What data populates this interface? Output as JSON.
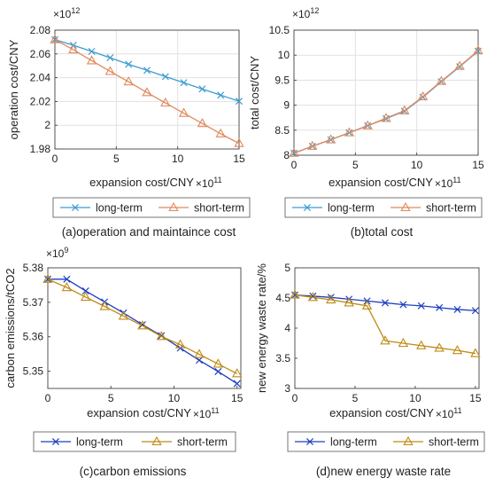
{
  "chart_data": [
    {
      "type": "line",
      "caption": "(a)operation and maintaince cost",
      "xlabel": "expansion cost/CNY",
      "x_exponent": "×10",
      "x_exponent_power": "11",
      "ylabel": "operation cost/CNY",
      "y_exponent": "×10",
      "y_exponent_power": "12",
      "xlim": [
        0,
        15
      ],
      "ylim": [
        1.98,
        2.08
      ],
      "xticks": [
        "0",
        "5",
        "10",
        "15"
      ],
      "yticks": [
        "1.98",
        "2",
        "2.02",
        "2.04",
        "2.06",
        "2.08"
      ],
      "grid": true,
      "legend_position": "below",
      "x": [
        0,
        1.5,
        3,
        4.5,
        6,
        7.5,
        9,
        10.5,
        12,
        13.5,
        15
      ],
      "series": [
        {
          "name": "long-term",
          "marker": "x",
          "color": "#3c9cd2",
          "values": [
            2.072,
            2.0673,
            2.0621,
            2.0568,
            2.0513,
            2.0462,
            2.0409,
            2.0358,
            2.0305,
            2.0253,
            2.0202
          ]
        },
        {
          "name": "short-term",
          "marker": "triangle",
          "color": "#e0895b",
          "values": [
            2.072,
            2.0635,
            2.0543,
            2.0453,
            2.0366,
            2.0275,
            2.0188,
            2.0101,
            2.0015,
            1.9928,
            1.9847
          ]
        }
      ]
    },
    {
      "type": "line",
      "caption": "(b)total cost",
      "xlabel": "expansion cost/CNY",
      "x_exponent": "×10",
      "x_exponent_power": "11",
      "ylabel": "total cost/CNY",
      "y_exponent": "×10",
      "y_exponent_power": "12",
      "xlim": [
        0,
        15
      ],
      "ylim": [
        8,
        10.5
      ],
      "xticks": [
        "0",
        "5",
        "10",
        "15"
      ],
      "yticks": [
        "8",
        "8.5",
        "9",
        "9.5",
        "10",
        "10.5"
      ],
      "grid": true,
      "legend_position": "below",
      "x": [
        0,
        1.5,
        3,
        4.5,
        6,
        7.5,
        9,
        10.5,
        12,
        13.5,
        15
      ],
      "series": [
        {
          "name": "long-term",
          "marker": "x",
          "color": "#3c9cd2",
          "values": [
            8.04,
            8.18,
            8.31,
            8.45,
            8.59,
            8.73,
            8.88,
            9.16,
            9.47,
            9.77,
            10.08
          ]
        },
        {
          "name": "short-term",
          "marker": "triangle",
          "color": "#e0895b",
          "values": [
            8.04,
            8.18,
            8.31,
            8.45,
            8.59,
            8.74,
            8.89,
            9.17,
            9.48,
            9.78,
            10.09
          ]
        }
      ]
    },
    {
      "type": "line",
      "caption": "(c)carbon emissions",
      "xlabel": "expansion cost/CNY",
      "x_exponent": "×10",
      "x_exponent_power": "11",
      "ylabel": "carbon emissions/tCO2",
      "y_exponent": "×10",
      "y_exponent_power": "9",
      "xlim": [
        0,
        15.3
      ],
      "ylim": [
        5.345,
        5.38
      ],
      "xticks": [
        "0",
        "5",
        "10",
        "15"
      ],
      "yticks": [
        "5.35",
        "5.36",
        "5.37",
        "5.38"
      ],
      "grid": false,
      "legend_position": "below",
      "x": [
        0,
        1.5,
        3,
        4.5,
        6,
        7.5,
        9,
        10.5,
        12,
        13.5,
        15
      ],
      "series": [
        {
          "name": "long-term",
          "marker": "x",
          "color": "#1f3fbf",
          "values": [
            5.3767,
            5.3767,
            5.3733,
            5.3701,
            5.3669,
            5.3635,
            5.3603,
            5.3567,
            5.3532,
            5.3499,
            5.3464
          ]
        },
        {
          "name": "short-term",
          "marker": "triangle",
          "color": "#bf8a12",
          "values": [
            5.3767,
            5.3743,
            5.3715,
            5.3688,
            5.366,
            5.3632,
            5.3601,
            5.3577,
            5.3549,
            5.3521,
            5.3493
          ]
        }
      ]
    },
    {
      "type": "line",
      "caption": "(d)new energy waste rate",
      "xlabel": "expansion cost/CNY",
      "x_exponent": "×10",
      "x_exponent_power": "11",
      "ylabel": "new energy waste rate/%",
      "xlim": [
        0,
        15.3
      ],
      "ylim": [
        3,
        5
      ],
      "xticks": [
        "0",
        "5",
        "10",
        "15"
      ],
      "yticks": [
        "3",
        "3.5",
        "4",
        "4.5",
        "5"
      ],
      "grid": false,
      "legend_position": "below",
      "x": [
        0,
        1.5,
        3,
        4.5,
        6,
        7.5,
        9,
        10.5,
        12,
        13.5,
        15
      ],
      "series": [
        {
          "name": "long-term",
          "marker": "x",
          "color": "#1f3fbf",
          "values": [
            4.55,
            4.53,
            4.51,
            4.48,
            4.45,
            4.42,
            4.39,
            4.37,
            4.34,
            4.31,
            4.29
          ]
        },
        {
          "name": "short-term",
          "marker": "triangle",
          "color": "#bf8a12",
          "values": [
            4.55,
            4.51,
            4.47,
            4.42,
            4.37,
            3.79,
            3.75,
            3.71,
            3.67,
            3.63,
            3.58
          ]
        }
      ]
    }
  ]
}
